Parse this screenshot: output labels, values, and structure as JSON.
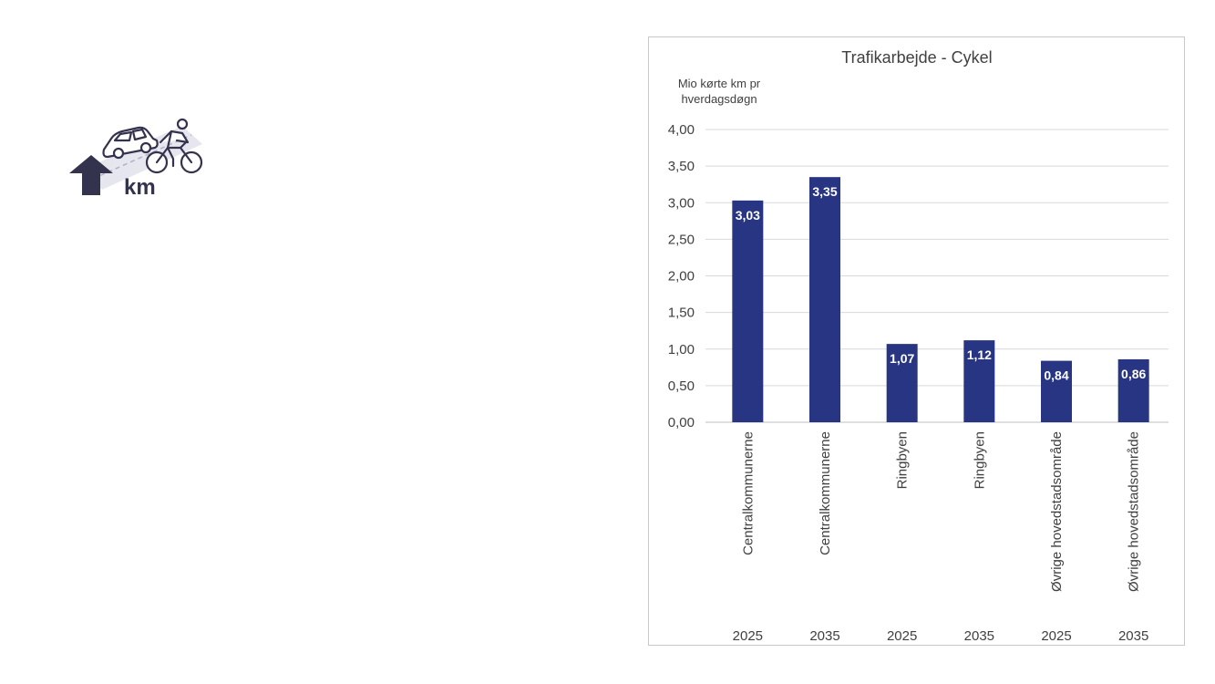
{
  "logo": {
    "label": "km",
    "icon": "car-bicycle-distance-icon",
    "color": "#33334d"
  },
  "chart_data": {
    "type": "bar",
    "title": "Trafikarbejde - Cykel",
    "ylabel": [
      "Mio kørte km pr",
      "hverdagsdøgn"
    ],
    "xlabel": "",
    "ylim": [
      0,
      4
    ],
    "ytick_values": [
      0,
      0.5,
      1,
      1.5,
      2,
      2.5,
      3,
      3.5,
      4
    ],
    "ytick_labels": [
      "0,00",
      "0,50",
      "1,00",
      "1,50",
      "2,00",
      "2,50",
      "3,00",
      "3,50",
      "4,00"
    ],
    "categories": [
      "Centralkommunerne",
      "Centralkommunerne",
      "Ringbyen",
      "Ringbyen",
      "Øvrige hovedstadsområde",
      "Øvrige hovedstadsområde"
    ],
    "years": [
      "2025",
      "2035",
      "2025",
      "2035",
      "2025",
      "2035"
    ],
    "values": [
      3.03,
      3.35,
      1.07,
      1.12,
      0.84,
      0.86
    ],
    "value_labels": [
      "3,03",
      "3,35",
      "1,07",
      "1,12",
      "0,84",
      "0,86"
    ],
    "grid": true,
    "bar_color": "#283583",
    "grid_color": "#d9d9d9"
  }
}
